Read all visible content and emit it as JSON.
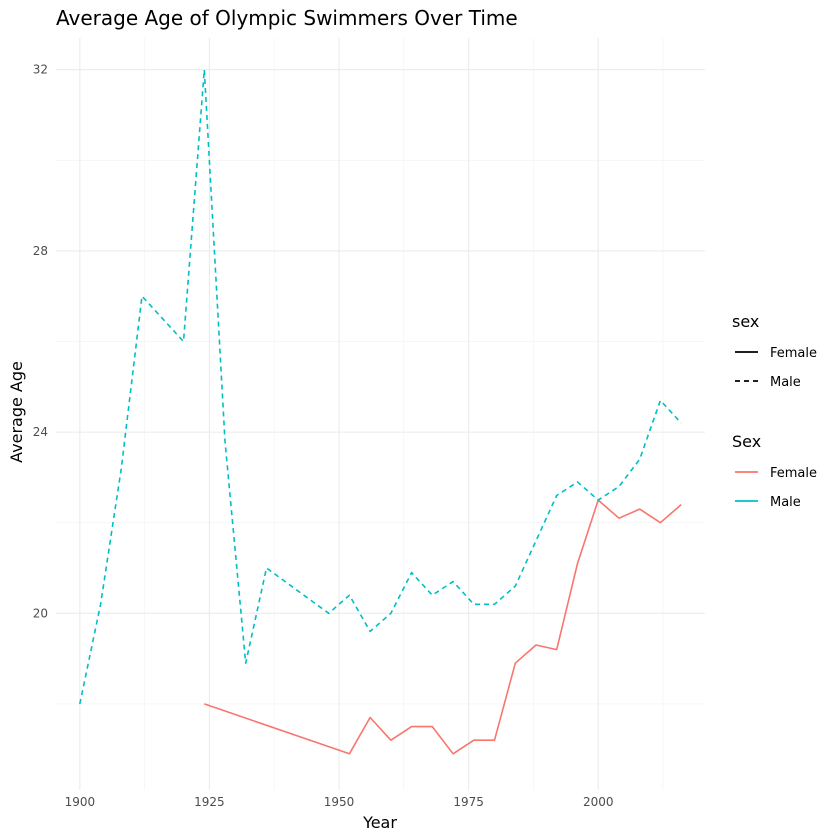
{
  "chart_data": {
    "type": "line",
    "title": "Average Age of Olympic Swimmers Over Time",
    "xlabel": "Year",
    "ylabel": "Average Age",
    "xlim": [
      1895.4,
      2020.6
    ],
    "ylim": [
      16.1,
      32.7
    ],
    "x_ticks": [
      1900,
      1925,
      1950,
      1975,
      2000
    ],
    "x_tick_labels": [
      "1900",
      "1925",
      "1950",
      "1975",
      "2000"
    ],
    "y_ticks": [
      20,
      24,
      28,
      32
    ],
    "y_tick_labels": [
      "20",
      "24",
      "28",
      "32"
    ],
    "grid": true,
    "legend_position": "right",
    "legends": [
      {
        "title": "sex",
        "kind": "linetype",
        "entries": [
          {
            "label": "Female",
            "linetype": "solid"
          },
          {
            "label": "Male",
            "linetype": "dashed"
          }
        ]
      },
      {
        "title": "Sex",
        "kind": "colour",
        "entries": [
          {
            "label": "Female",
            "color": "#F8766D"
          },
          {
            "label": "Male",
            "color": "#00BFC4"
          }
        ]
      }
    ],
    "series": [
      {
        "name": "Female",
        "color": "#F8766D",
        "linetype": "solid",
        "x": [
          1924,
          1952,
          1956,
          1960,
          1964,
          1968,
          1972,
          1976,
          1980,
          1984,
          1988,
          1992,
          1996,
          2000,
          2004,
          2008,
          2012,
          2016
        ],
        "y": [
          18.0,
          16.9,
          17.7,
          17.2,
          17.5,
          17.5,
          16.9,
          17.2,
          17.2,
          18.9,
          19.3,
          19.2,
          21.1,
          22.5,
          22.1,
          22.3,
          22.0,
          22.4
        ]
      },
      {
        "name": "Male",
        "color": "#00BFC4",
        "linetype": "dashed",
        "x": [
          1900,
          1904,
          1908,
          1912,
          1920,
          1924,
          1928,
          1932,
          1936,
          1948,
          1952,
          1956,
          1960,
          1964,
          1968,
          1972,
          1976,
          1980,
          1984,
          1988,
          1992,
          1996,
          2000,
          2004,
          2008,
          2012,
          2016
        ],
        "y": [
          18.0,
          20.2,
          23.2,
          27.0,
          26.0,
          32.0,
          23.8,
          18.9,
          21.0,
          20.0,
          20.4,
          19.6,
          20.0,
          20.9,
          20.4,
          20.7,
          20.2,
          20.2,
          20.6,
          21.6,
          22.6,
          22.9,
          22.5,
          22.8,
          23.4,
          24.7,
          24.2
        ]
      }
    ]
  }
}
